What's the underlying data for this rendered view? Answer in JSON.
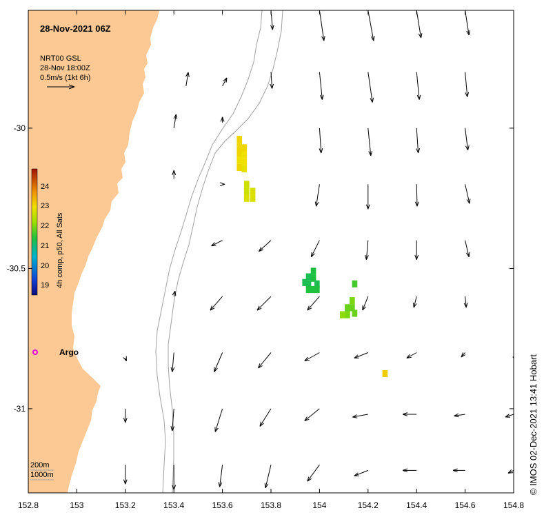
{
  "title": "28-Nov-2021 06Z",
  "vector_legend": {
    "line1": "NRT00 GSL",
    "line2": "28-Nov 18:00Z",
    "line3": "0.5m/s (1kt 6h)"
  },
  "colorbar": {
    "label": "4h comp, p50, All Sats",
    "ticks": [
      "24",
      "23",
      "22",
      "21",
      "20",
      "19"
    ],
    "min": 18.5,
    "max": 24.5
  },
  "argo_label": "Argo",
  "depth_legend": {
    "shallow": "200m",
    "deep": "1000m"
  },
  "credit": "© IMOS 02-Dec-2021 13:41 Hobart",
  "x_axis": {
    "ticks": [
      "152.8",
      "153",
      "153.2",
      "153.4",
      "153.6",
      "153.8",
      "154",
      "154.2",
      "154.4",
      "154.6",
      "154.8"
    ],
    "range": [
      152.8,
      154.8
    ]
  },
  "y_axis": {
    "ticks": [
      "-30",
      "-30.5",
      "-31"
    ],
    "range": [
      -31.3,
      -29.58
    ]
  },
  "colors": {
    "land": "#FCC994",
    "ocean": "#FFFFFF",
    "contour": "#A0A0A0",
    "argo": "#E000E0",
    "vectors": "#000000"
  },
  "sst_cells": [
    {
      "lon": 153.67,
      "lat": -30.04,
      "t": 22.8
    },
    {
      "lon": 153.67,
      "lat": -30.065,
      "t": 22.8
    },
    {
      "lon": 153.67,
      "lat": -30.09,
      "t": 22.8
    },
    {
      "lon": 153.67,
      "lat": -30.115,
      "t": 22.7
    },
    {
      "lon": 153.67,
      "lat": -30.14,
      "t": 22.8
    },
    {
      "lon": 153.69,
      "lat": -30.07,
      "t": 22.8
    },
    {
      "lon": 153.69,
      "lat": -30.095,
      "t": 22.7
    },
    {
      "lon": 153.69,
      "lat": -30.12,
      "t": 22.7
    },
    {
      "lon": 153.69,
      "lat": -30.145,
      "t": 22.6
    },
    {
      "lon": 153.7,
      "lat": -30.2,
      "t": 22.4
    },
    {
      "lon": 153.7,
      "lat": -30.225,
      "t": 22.4
    },
    {
      "lon": 153.7,
      "lat": -30.25,
      "t": 22.5
    },
    {
      "lon": 153.725,
      "lat": -30.225,
      "t": 22.5
    },
    {
      "lon": 153.725,
      "lat": -30.25,
      "t": 22.5
    },
    {
      "lon": 153.975,
      "lat": -30.51,
      "t": 21.3
    },
    {
      "lon": 153.975,
      "lat": -30.535,
      "t": 21.3
    },
    {
      "lon": 153.955,
      "lat": -30.53,
      "t": 21.2
    },
    {
      "lon": 153.955,
      "lat": -30.555,
      "t": 21.2
    },
    {
      "lon": 153.94,
      "lat": -30.55,
      "t": 21.2
    },
    {
      "lon": 153.99,
      "lat": -30.555,
      "t": 21.2
    },
    {
      "lon": 153.975,
      "lat": -30.575,
      "t": 21.3
    },
    {
      "lon": 153.955,
      "lat": -30.575,
      "t": 21.3
    },
    {
      "lon": 153.99,
      "lat": -30.575,
      "t": 21.3
    },
    {
      "lon": 154.145,
      "lat": -30.555,
      "t": 21.5
    },
    {
      "lon": 154.135,
      "lat": -30.615,
      "t": 21.8
    },
    {
      "lon": 154.135,
      "lat": -30.64,
      "t": 21.7
    },
    {
      "lon": 154.115,
      "lat": -30.64,
      "t": 21.7
    },
    {
      "lon": 154.115,
      "lat": -30.665,
      "t": 21.8
    },
    {
      "lon": 154.095,
      "lat": -30.665,
      "t": 21.9
    },
    {
      "lon": 154.145,
      "lat": -30.66,
      "t": 21.7
    },
    {
      "lon": 154.27,
      "lat": -30.875,
      "t": 22.9
    }
  ],
  "argo_point": {
    "lon": 152.83,
    "lat": -30.81
  },
  "vectors": [
    {
      "lon": 154.0,
      "lat": -29.58,
      "u": 0.08,
      "v": -0.55
    },
    {
      "lon": 154.2,
      "lat": -29.58,
      "u": 0.1,
      "v": -0.55
    },
    {
      "lon": 154.4,
      "lat": -29.58,
      "u": 0.08,
      "v": -0.5
    },
    {
      "lon": 154.6,
      "lat": -29.58,
      "u": 0.07,
      "v": -0.45
    },
    {
      "lon": 153.8,
      "lat": -29.58,
      "u": 0.03,
      "v": -0.35
    },
    {
      "lon": 153.45,
      "lat": -29.85,
      "u": 0.04,
      "v": 0.25
    },
    {
      "lon": 153.6,
      "lat": -29.85,
      "u": 0.08,
      "v": 0.15
    },
    {
      "lon": 153.8,
      "lat": -29.8,
      "u": 0.02,
      "v": -0.3
    },
    {
      "lon": 154.0,
      "lat": -29.8,
      "u": 0.05,
      "v": -0.5
    },
    {
      "lon": 154.2,
      "lat": -29.8,
      "u": 0.08,
      "v": -0.55
    },
    {
      "lon": 154.4,
      "lat": -29.8,
      "u": 0.05,
      "v": -0.5
    },
    {
      "lon": 154.6,
      "lat": -29.8,
      "u": 0.04,
      "v": -0.45
    },
    {
      "lon": 153.4,
      "lat": -30.0,
      "u": 0.04,
      "v": 0.25
    },
    {
      "lon": 153.6,
      "lat": -29.98,
      "u": 0.0,
      "v": 0.1
    },
    {
      "lon": 154.0,
      "lat": -30.0,
      "u": 0.03,
      "v": -0.45
    },
    {
      "lon": 154.2,
      "lat": -30.0,
      "u": 0.05,
      "v": -0.5
    },
    {
      "lon": 154.4,
      "lat": -30.0,
      "u": 0.03,
      "v": -0.45
    },
    {
      "lon": 154.6,
      "lat": -30.0,
      "u": 0.05,
      "v": -0.4
    },
    {
      "lon": 153.4,
      "lat": -30.18,
      "u": 0.0,
      "v": 0.15
    },
    {
      "lon": 153.6,
      "lat": -30.2,
      "u": 0.04,
      "v": 0.0
    },
    {
      "lon": 154.0,
      "lat": -30.2,
      "u": -0.06,
      "v": -0.4
    },
    {
      "lon": 154.2,
      "lat": -30.2,
      "u": 0.0,
      "v": -0.45
    },
    {
      "lon": 154.4,
      "lat": -30.2,
      "u": 0.01,
      "v": -0.4
    },
    {
      "lon": 154.6,
      "lat": -30.2,
      "u": 0.08,
      "v": -0.35
    },
    {
      "lon": 153.6,
      "lat": -30.4,
      "u": -0.2,
      "v": -0.1
    },
    {
      "lon": 153.8,
      "lat": -30.4,
      "u": -0.22,
      "v": -0.2
    },
    {
      "lon": 154.0,
      "lat": -30.4,
      "u": -0.15,
      "v": -0.3
    },
    {
      "lon": 154.2,
      "lat": -30.4,
      "u": -0.03,
      "v": -0.35
    },
    {
      "lon": 154.4,
      "lat": -30.4,
      "u": 0.0,
      "v": -0.35
    },
    {
      "lon": 154.6,
      "lat": -30.4,
      "u": 0.07,
      "v": -0.3
    },
    {
      "lon": 153.4,
      "lat": -30.6,
      "u": 0.02,
      "v": 0.1
    },
    {
      "lon": 153.6,
      "lat": -30.6,
      "u": -0.22,
      "v": -0.25
    },
    {
      "lon": 153.8,
      "lat": -30.6,
      "u": -0.25,
      "v": -0.25
    },
    {
      "lon": 154.0,
      "lat": -30.6,
      "u": -0.22,
      "v": -0.25
    },
    {
      "lon": 154.2,
      "lat": -30.6,
      "u": -0.1,
      "v": -0.25
    },
    {
      "lon": 154.4,
      "lat": -30.6,
      "u": -0.05,
      "v": -0.2
    },
    {
      "lon": 154.6,
      "lat": -30.6,
      "u": 0.02,
      "v": -0.2
    },
    {
      "lon": 153.2,
      "lat": -30.82,
      "u": 0.02,
      "v": -0.05
    },
    {
      "lon": 153.4,
      "lat": -30.8,
      "u": -0.03,
      "v": -0.35
    },
    {
      "lon": 153.6,
      "lat": -30.8,
      "u": -0.15,
      "v": -0.35
    },
    {
      "lon": 153.8,
      "lat": -30.8,
      "u": -0.23,
      "v": -0.28
    },
    {
      "lon": 154.0,
      "lat": -30.8,
      "u": -0.27,
      "v": -0.15
    },
    {
      "lon": 154.2,
      "lat": -30.8,
      "u": -0.25,
      "v": -0.1
    },
    {
      "lon": 154.4,
      "lat": -30.8,
      "u": -0.18,
      "v": -0.1
    },
    {
      "lon": 154.6,
      "lat": -30.8,
      "u": -0.07,
      "v": -0.08
    },
    {
      "lon": 154.8,
      "lat": -30.8,
      "u": 0.03,
      "v": -0.15
    },
    {
      "lon": 153.2,
      "lat": -31.0,
      "u": 0.0,
      "v": -0.25
    },
    {
      "lon": 153.4,
      "lat": -31.0,
      "u": -0.03,
      "v": -0.4
    },
    {
      "lon": 153.6,
      "lat": -31.0,
      "u": -0.13,
      "v": -0.42
    },
    {
      "lon": 153.8,
      "lat": -31.0,
      "u": -0.2,
      "v": -0.32
    },
    {
      "lon": 154.0,
      "lat": -31.0,
      "u": -0.27,
      "v": -0.22
    },
    {
      "lon": 154.2,
      "lat": -31.02,
      "u": -0.28,
      "v": -0.05
    },
    {
      "lon": 154.4,
      "lat": -31.02,
      "u": -0.25,
      "v": 0.0
    },
    {
      "lon": 154.6,
      "lat": -31.02,
      "u": -0.2,
      "v": -0.03
    },
    {
      "lon": 154.8,
      "lat": -31.02,
      "u": -0.15,
      "v": -0.05
    },
    {
      "lon": 153.2,
      "lat": -31.2,
      "u": 0.0,
      "v": -0.35
    },
    {
      "lon": 153.4,
      "lat": -31.2,
      "u": 0.0,
      "v": -0.45
    },
    {
      "lon": 153.6,
      "lat": -31.2,
      "u": -0.05,
      "v": -0.4
    },
    {
      "lon": 153.8,
      "lat": -31.2,
      "u": -0.1,
      "v": -0.42
    },
    {
      "lon": 154.0,
      "lat": -31.2,
      "u": -0.22,
      "v": -0.3
    },
    {
      "lon": 154.2,
      "lat": -31.22,
      "u": -0.25,
      "v": -0.1
    },
    {
      "lon": 154.4,
      "lat": -31.22,
      "u": -0.25,
      "v": 0.0
    },
    {
      "lon": 154.6,
      "lat": -31.22,
      "u": -0.22,
      "v": 0.0
    },
    {
      "lon": 154.8,
      "lat": -31.22,
      "u": -0.1,
      "v": -0.05
    }
  ]
}
